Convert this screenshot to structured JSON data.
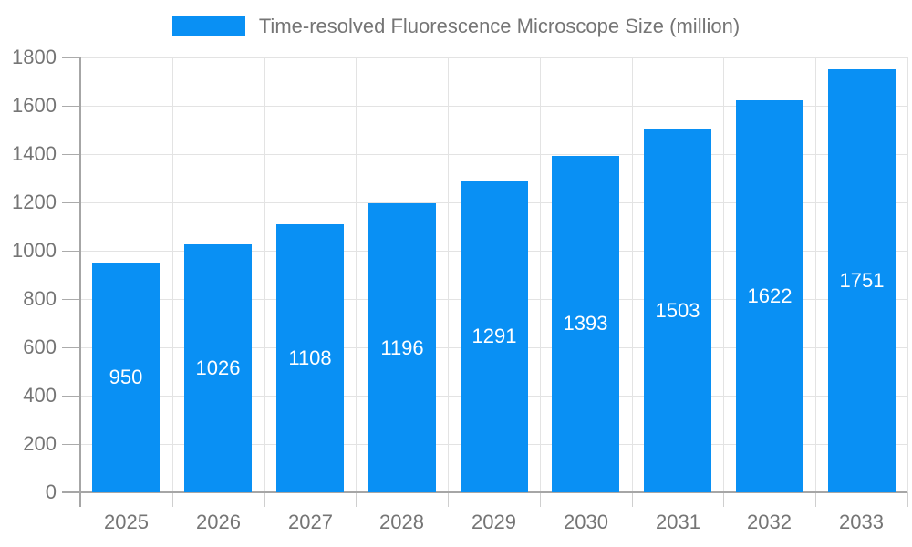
{
  "chart_data": {
    "type": "bar",
    "title": "Time-resolved Fluorescence Microscope Size (million)",
    "categories": [
      "2025",
      "2026",
      "2027",
      "2028",
      "2029",
      "2030",
      "2031",
      "2032",
      "2033"
    ],
    "values": [
      950,
      1026,
      1108,
      1196,
      1291,
      1393,
      1503,
      1622,
      1751
    ],
    "ylim": [
      0,
      1800
    ],
    "ytick_step": 200,
    "yticks": [
      0,
      200,
      400,
      600,
      800,
      1000,
      1200,
      1400,
      1600,
      1800
    ],
    "grid": true,
    "legend_position": "top-center",
    "bar_labels_inside": true,
    "colors": {
      "bar": "#0990f4",
      "bar_value_text": "#ffffff",
      "axis_text": "#757575",
      "grid_line": "#e3e3e3",
      "axis_line": "#a6a6a6"
    }
  }
}
